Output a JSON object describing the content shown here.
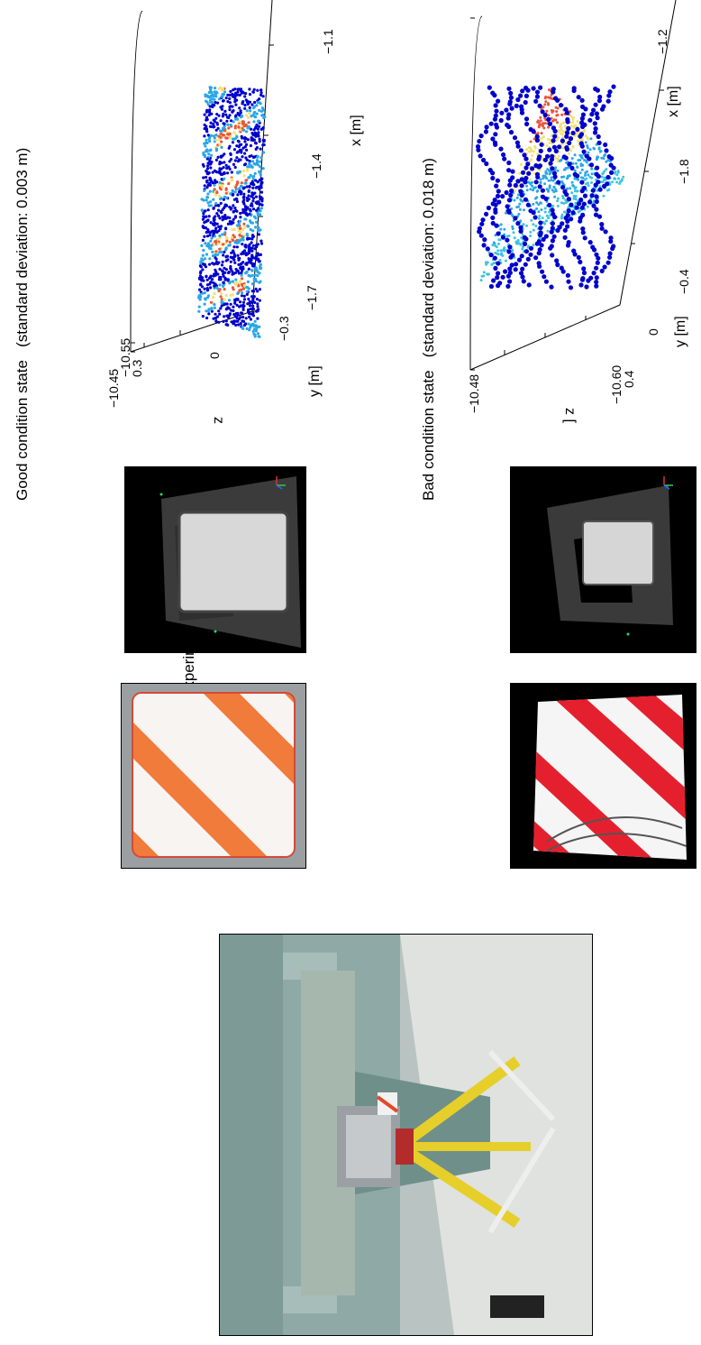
{
  "figure": {
    "experiment_label": "Experiment",
    "good": {
      "title": "Good condition state",
      "std_note": "(standard deviation: 0.003 m)"
    },
    "bad": {
      "title": "Bad condition state",
      "std_note": "(standard deviation: 0.018 m)"
    }
  },
  "chart_data": [
    {
      "type": "scatter",
      "title": "Good condition state (standard deviation: 0.003 m)",
      "xlabel": "x [m]",
      "ylabel": "y [m]",
      "zlabel": "z [m]",
      "x_ticks": [
        "−1.7",
        "−1.4",
        "−1.1"
      ],
      "y_ticks": [
        "0.3",
        "0",
        "−0.3"
      ],
      "z_ticks": [
        "−10.45",
        "−10.55"
      ],
      "colormap": [
        "#0000cc",
        "#2aa7e6",
        "#f2e07a",
        "#e8563c"
      ]
    },
    {
      "type": "scatter",
      "title": "Bad condition state (standard deviation: 0.018 m)",
      "xlabel": "x [m]",
      "ylabel": "y [m]",
      "zlabel": "z [m]",
      "x_ticks": [
        "−1.8",
        "−1.2"
      ],
      "y_ticks": [
        "0.4",
        "0",
        "−0.4"
      ],
      "z_ticks": [
        "−10.48",
        "−10.60"
      ],
      "colormap": [
        "#0000cc",
        "#2aa7e6",
        "#f2e07a",
        "#e8563c"
      ]
    }
  ]
}
